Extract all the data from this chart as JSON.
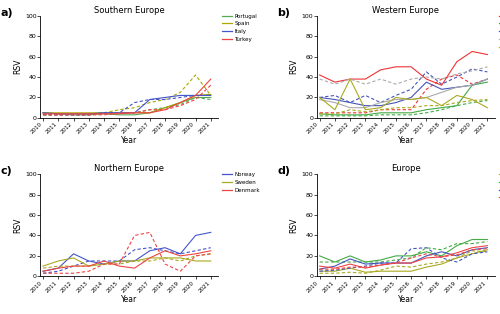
{
  "years": [
    2010,
    2011,
    2012,
    2013,
    2014,
    2015,
    2016,
    2017,
    2018,
    2019,
    2020,
    2021
  ],
  "panel_a": {
    "title": "Southern Europe",
    "food_sustainability": {
      "Portugal": [
        5,
        4,
        3,
        3,
        4,
        3,
        3,
        5,
        10,
        15,
        20,
        20
      ],
      "Spain": [
        5,
        5,
        5,
        5,
        5,
        5,
        5,
        5,
        10,
        15,
        22,
        23
      ],
      "Italy": [
        5,
        4,
        4,
        4,
        5,
        5,
        5,
        18,
        20,
        22,
        22,
        22
      ],
      "Turkey": [
        4,
        4,
        4,
        4,
        4,
        4,
        5,
        5,
        8,
        15,
        22,
        38
      ]
    },
    "flexitarianism": {
      "Portugal": [
        3,
        3,
        3,
        3,
        5,
        5,
        5,
        8,
        10,
        13,
        20,
        18
      ],
      "Spain": [
        3,
        3,
        3,
        3,
        5,
        8,
        10,
        15,
        18,
        25,
        42,
        22
      ],
      "Italy": [
        3,
        3,
        3,
        3,
        5,
        5,
        15,
        18,
        18,
        20,
        22,
        22
      ],
      "Turkey": [
        3,
        3,
        3,
        3,
        3,
        5,
        5,
        8,
        8,
        12,
        18,
        32
      ]
    },
    "colors": {
      "Portugal": "#55aa55",
      "Spain": "#aaaa00",
      "Italy": "#4455cc",
      "Turkey": "#ee4444"
    }
  },
  "panel_b": {
    "title": "Western Europe",
    "food_sustainability": {
      "UK": [
        42,
        35,
        38,
        38,
        47,
        50,
        50,
        38,
        32,
        55,
        65,
        62
      ],
      "Ireland": [
        4,
        3,
        3,
        3,
        5,
        5,
        5,
        8,
        10,
        12,
        32,
        35
      ],
      "France": [
        20,
        18,
        15,
        12,
        12,
        15,
        20,
        35,
        28,
        30,
        32,
        38
      ],
      "Germany": [
        18,
        15,
        10,
        10,
        15,
        18,
        18,
        20,
        25,
        30,
        32,
        38
      ],
      "Netherlands": [
        20,
        8,
        38,
        8,
        10,
        20,
        18,
        20,
        12,
        22,
        18,
        10
      ]
    },
    "flexitarianism": {
      "UK": [
        5,
        5,
        5,
        5,
        8,
        8,
        8,
        28,
        38,
        42,
        33,
        38
      ],
      "Ireland": [
        2,
        2,
        2,
        2,
        3,
        3,
        3,
        5,
        8,
        12,
        15,
        17
      ],
      "France": [
        20,
        22,
        15,
        22,
        15,
        22,
        28,
        45,
        33,
        40,
        48,
        45
      ],
      "Germany": [
        38,
        33,
        38,
        33,
        38,
        33,
        38,
        40,
        38,
        43,
        46,
        50
      ],
      "Netherlands": [
        4,
        4,
        8,
        6,
        8,
        10,
        10,
        12,
        12,
        15,
        17,
        18
      ]
    },
    "colors": {
      "UK": "#ee3333",
      "Ireland": "#44aa44",
      "France": "#4455bb",
      "Germany": "#aaaaaa",
      "Netherlands": "#aaaa22"
    }
  },
  "panel_c": {
    "title": "Northern Europe",
    "food_sustainability": {
      "Norway": [
        5,
        8,
        22,
        15,
        12,
        15,
        15,
        25,
        28,
        22,
        40,
        43
      ],
      "Sweden": [
        10,
        15,
        18,
        10,
        12,
        15,
        15,
        18,
        18,
        18,
        15,
        15
      ],
      "Denmark": [
        5,
        8,
        10,
        10,
        15,
        10,
        8,
        18,
        25,
        20,
        22,
        25
      ]
    },
    "flexitarianism": {
      "Norway": [
        3,
        5,
        10,
        15,
        15,
        15,
        26,
        28,
        25,
        22,
        25,
        28
      ],
      "Sweden": [
        8,
        10,
        10,
        10,
        12,
        12,
        15,
        15,
        18,
        15,
        20,
        22
      ],
      "Denmark": [
        3,
        3,
        3,
        5,
        12,
        12,
        40,
        43,
        12,
        5,
        20,
        22
      ]
    },
    "colors": {
      "Norway": "#4455cc",
      "Sweden": "#aaaa22",
      "Denmark": "#ee4444"
    }
  },
  "panel_d": {
    "title": "Europe",
    "food_sustainability": {
      "Southern Europe": [
        5,
        5,
        8,
        4,
        5,
        5,
        5,
        9,
        12,
        18,
        22,
        26
      ],
      "Western Europe": [
        20,
        14,
        20,
        14,
        16,
        20,
        20,
        24,
        20,
        30,
        36,
        36
      ],
      "Northern Europe": [
        7,
        10,
        17,
        12,
        13,
        13,
        13,
        20,
        24,
        20,
        26,
        28
      ],
      "Mean (All regions)": [
        10,
        8,
        12,
        8,
        11,
        13,
        13,
        18,
        19,
        23,
        28,
        30
      ]
    },
    "flexitarianism": {
      "Southern Europe": [
        3,
        3,
        4,
        3,
        6,
        10,
        9,
        12,
        14,
        18,
        25,
        24
      ],
      "Western Europe": [
        14,
        14,
        14,
        14,
        14,
        16,
        18,
        28,
        26,
        32,
        32,
        34
      ],
      "Northern Europe": [
        5,
        6,
        8,
        10,
        13,
        13,
        27,
        28,
        18,
        14,
        22,
        24
      ],
      "Mean (All regions)": [
        7,
        7,
        9,
        9,
        11,
        13,
        18,
        22,
        19,
        21,
        26,
        27
      ]
    },
    "colors": {
      "Southern Europe": "#aaaa22",
      "Western Europe": "#44aa44",
      "Northern Europe": "#4455bb",
      "Mean (All regions)": "#ee4444"
    }
  },
  "ylim": [
    0,
    100
  ],
  "yticks": [
    0,
    20,
    40,
    60,
    80,
    100
  ],
  "ylabel": "RSV",
  "xlabel": "Year",
  "background": "#ffffff"
}
